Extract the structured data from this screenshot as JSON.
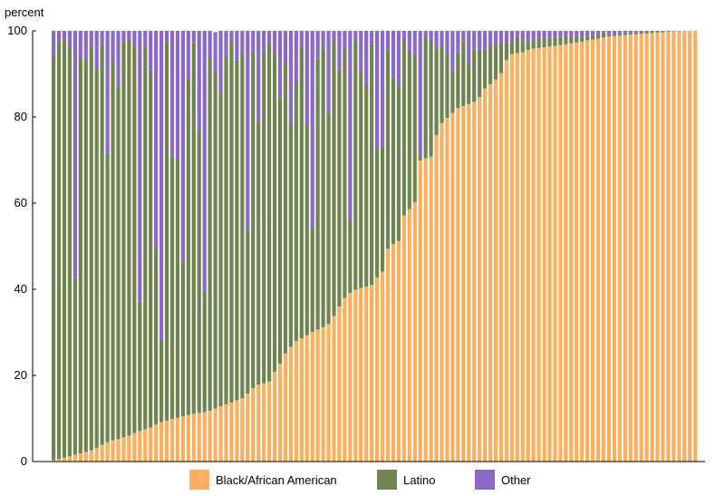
{
  "chart_data": {
    "type": "bar",
    "stacked": true,
    "ylabel": "percent",
    "ylim": [
      0,
      100
    ],
    "yticks": [
      0,
      20,
      40,
      60,
      80,
      100
    ],
    "grid": false,
    "legend_position": "bottom",
    "colors": {
      "black": "#fbb060",
      "latino": "#6f8451",
      "other": "#8c68c8",
      "axis": "#000000"
    },
    "series": [
      {
        "name": "Black/African American",
        "values": [
          0.3,
          0.6,
          0.9,
          1.2,
          1.6,
          1.9,
          2.2,
          2.6,
          3.1,
          3.9,
          4.5,
          4.9,
          5.2,
          5.6,
          6.0,
          6.6,
          7.1,
          7.5,
          7.9,
          8.6,
          9.1,
          9.5,
          9.9,
          10.2,
          10.5,
          10.8,
          11.1,
          11.3,
          11.5,
          11.8,
          12.3,
          12.8,
          13.3,
          13.7,
          14.2,
          14.7,
          15.8,
          17.0,
          17.9,
          18.2,
          18.6,
          20.8,
          22.7,
          25.1,
          26.6,
          28.0,
          28.6,
          29.3,
          30.1,
          30.6,
          31.2,
          32.0,
          33.8,
          36.0,
          38.0,
          39.1,
          39.9,
          40.3,
          40.6,
          41.0,
          42.7,
          44.1,
          49.4,
          50.5,
          51.2,
          57.1,
          58.6,
          60.2,
          69.9,
          70.4,
          70.8,
          75.8,
          78.6,
          79.8,
          80.9,
          82.1,
          82.5,
          83.0,
          83.5,
          84.6,
          86.6,
          87.6,
          88.7,
          90.2,
          93.2,
          94.6,
          94.8,
          95.0,
          95.6,
          95.9,
          96.0,
          96.2,
          96.4,
          96.5,
          96.7,
          96.9,
          97.1,
          97.3,
          97.5,
          97.8,
          98.0,
          98.2,
          98.5,
          98.7,
          98.8,
          98.9,
          99.0,
          99.1,
          99.2,
          99.3,
          99.4,
          99.5,
          99.6,
          99.7,
          99.8,
          99.9,
          99.9,
          100,
          100,
          100
        ],
        "values_unit": "percent"
      },
      {
        "name": "Latino",
        "values": [
          94.0,
          97.0,
          97.0,
          95.0,
          41.0,
          92.0,
          91.0,
          94.0,
          88.0,
          93.0,
          67.0,
          88.0,
          82.0,
          92.0,
          92.0,
          90.0,
          30.0,
          89.0,
          83.0,
          41.0,
          19.0,
          88.0,
          61.0,
          60.0,
          36.0,
          78.0,
          86.0,
          66.0,
          28.0,
          82.0,
          78.0,
          73.0,
          81.0,
          84.0,
          79.0,
          80.0,
          38.0,
          78.0,
          61.0,
          77.0,
          79.0,
          74.0,
          62.0,
          67.0,
          52.0,
          60.0,
          68.0,
          49.0,
          24.0,
          63.0,
          65.0,
          49.0,
          64.0,
          55.0,
          58.0,
          17.0,
          58.0,
          50.0,
          47.0,
          56.0,
          30.0,
          29.0,
          46.0,
          39.0,
          36.0,
          41.0,
          37.0,
          34.0,
          1.0,
          28.0,
          27.0,
          20.0,
          18.0,
          15.0,
          10.0,
          13.0,
          15.0,
          9.0,
          12.0,
          11.0,
          9.0,
          9.0,
          8.0,
          7.0,
          4.0,
          3.0,
          4.0,
          2.5,
          2.0,
          2.0,
          2.5,
          2.0,
          2.0,
          2.0,
          2.0,
          2.0,
          1.5,
          1.5,
          1.0,
          1.0,
          1.0,
          1.0,
          1.0,
          0.5,
          0.5,
          0.5,
          0.5,
          0.5,
          0.5,
          0.5,
          0.5,
          0.5,
          0.4,
          0.3,
          0.2,
          0.1,
          0,
          0,
          0,
          0
        ],
        "values_unit": "percent"
      },
      {
        "name": "Other",
        "values": [
          5.7,
          2.4,
          2.1,
          3.8,
          57.4,
          6.1,
          6.8,
          3.4,
          8.9,
          3.1,
          28.5,
          7.1,
          12.8,
          2.4,
          2.0,
          3.4,
          62.9,
          3.5,
          9.1,
          50.4,
          71.9,
          2.5,
          29.1,
          29.8,
          53.5,
          11.4,
          2.9,
          22.7,
          60.5,
          6.2,
          9.4,
          14.2,
          5.7,
          2.3,
          6.8,
          5.3,
          46.2,
          5.0,
          21.1,
          4.8,
          2.4,
          5.2,
          15.3,
          7.9,
          21.4,
          12.0,
          3.4,
          21.7,
          45.9,
          6.4,
          3.8,
          19.0,
          2.2,
          9.0,
          4.0,
          43.9,
          2.1,
          9.7,
          12.4,
          3.0,
          27.3,
          26.9,
          4.6,
          10.5,
          12.8,
          1.9,
          4.4,
          5.8,
          29.1,
          1.6,
          2.2,
          4.2,
          3.4,
          5.2,
          9.1,
          4.9,
          2.5,
          8.0,
          4.5,
          4.4,
          4.4,
          3.4,
          3.3,
          2.8,
          2.8,
          2.4,
          1.2,
          2.5,
          2.4,
          2.1,
          1.5,
          1.8,
          1.6,
          1.5,
          1.3,
          1.1,
          1.4,
          1.2,
          1.5,
          1.2,
          1.0,
          0.8,
          0.5,
          0.8,
          0.7,
          0.6,
          0.5,
          0.4,
          0.3,
          0.2,
          0.1,
          0,
          0,
          0,
          0,
          0,
          0.1,
          0,
          0,
          0
        ],
        "values_unit": "percent"
      }
    ]
  }
}
